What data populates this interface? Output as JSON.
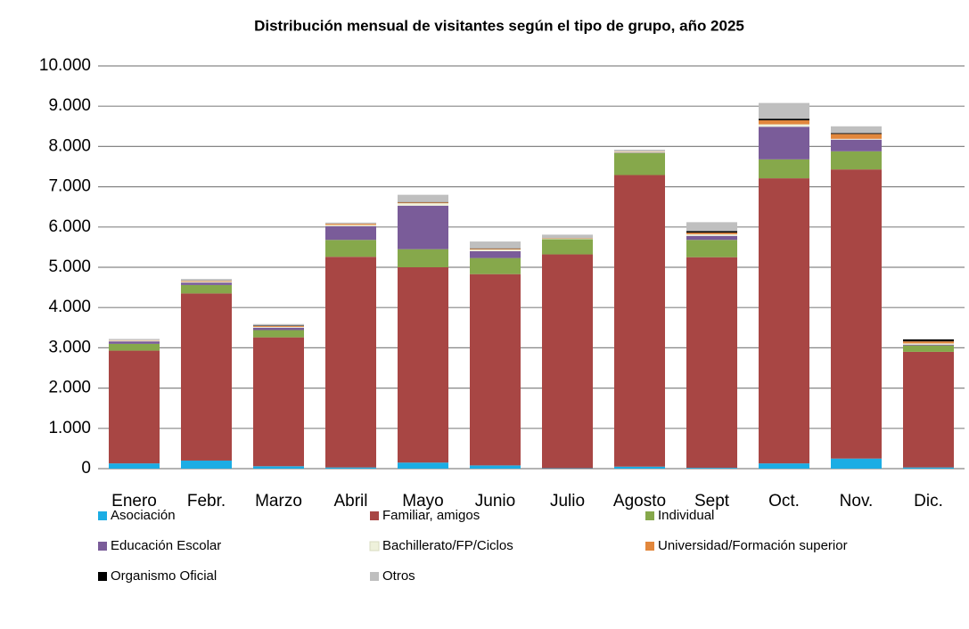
{
  "chart_data": {
    "type": "stacked_bar",
    "title": "Distribución mensual de visitantes según el tipo de grupo, año 2025",
    "categories": [
      "Enero",
      "Febr.",
      "Marzo",
      "Abril",
      "Mayo",
      "Junio",
      "Julio",
      "Agosto",
      "Sept",
      "Oct.",
      "Nov.",
      "Dic."
    ],
    "series": [
      {
        "name": "Asociación",
        "color": "#1cade4",
        "values": [
          130,
          200,
          60,
          30,
          150,
          80,
          10,
          50,
          20,
          130,
          250,
          30
        ]
      },
      {
        "name": "Familiar, amigos",
        "color": "#a84644",
        "values": [
          2800,
          4150,
          3200,
          5230,
          4850,
          4750,
          5310,
          7240,
          5230,
          7080,
          7180,
          2870
        ]
      },
      {
        "name": "Individual",
        "color": "#86a84b",
        "values": [
          170,
          210,
          180,
          420,
          450,
          400,
          380,
          550,
          430,
          470,
          450,
          160
        ]
      },
      {
        "name": "Educación Escolar",
        "color": "#7a5c99",
        "values": [
          60,
          60,
          60,
          340,
          1080,
          170,
          0,
          10,
          100,
          810,
          290,
          20
        ]
      },
      {
        "name": "Bachillerato/FP/Ciclos",
        "color": "#eef1db",
        "values": [
          20,
          20,
          20,
          30,
          60,
          40,
          10,
          20,
          40,
          60,
          20,
          30
        ]
      },
      {
        "name": "Universidad/Formación superior",
        "color": "#e2873c",
        "values": [
          10,
          20,
          20,
          30,
          20,
          20,
          10,
          10,
          40,
          100,
          120,
          50
        ]
      },
      {
        "name": "Organismo Oficial",
        "color": "#000000",
        "values": [
          0,
          0,
          10,
          0,
          10,
          10,
          0,
          0,
          40,
          40,
          20,
          50
        ]
      },
      {
        "name": "Otros",
        "color": "#bfbfbf",
        "values": [
          30,
          50,
          40,
          30,
          180,
          170,
          90,
          40,
          220,
          390,
          170,
          0
        ]
      }
    ],
    "ylim": [
      0,
      10000
    ],
    "yticks": [
      0,
      {
        "value": 1000,
        "label": "1.000"
      },
      {
        "value": 2000,
        "label": "2.000"
      },
      {
        "value": 3000,
        "label": "3.000"
      },
      {
        "value": 4000,
        "label": "4.000"
      },
      {
        "value": 5000,
        "label": "5.000"
      },
      {
        "value": 6000,
        "label": "6.000"
      },
      {
        "value": 7000,
        "label": "7.000"
      },
      {
        "value": 8000,
        "label": "8.000"
      },
      {
        "value": 9000,
        "label": "9.000"
      },
      {
        "value": 10000,
        "label": "10.000"
      }
    ],
    "grid": true
  }
}
